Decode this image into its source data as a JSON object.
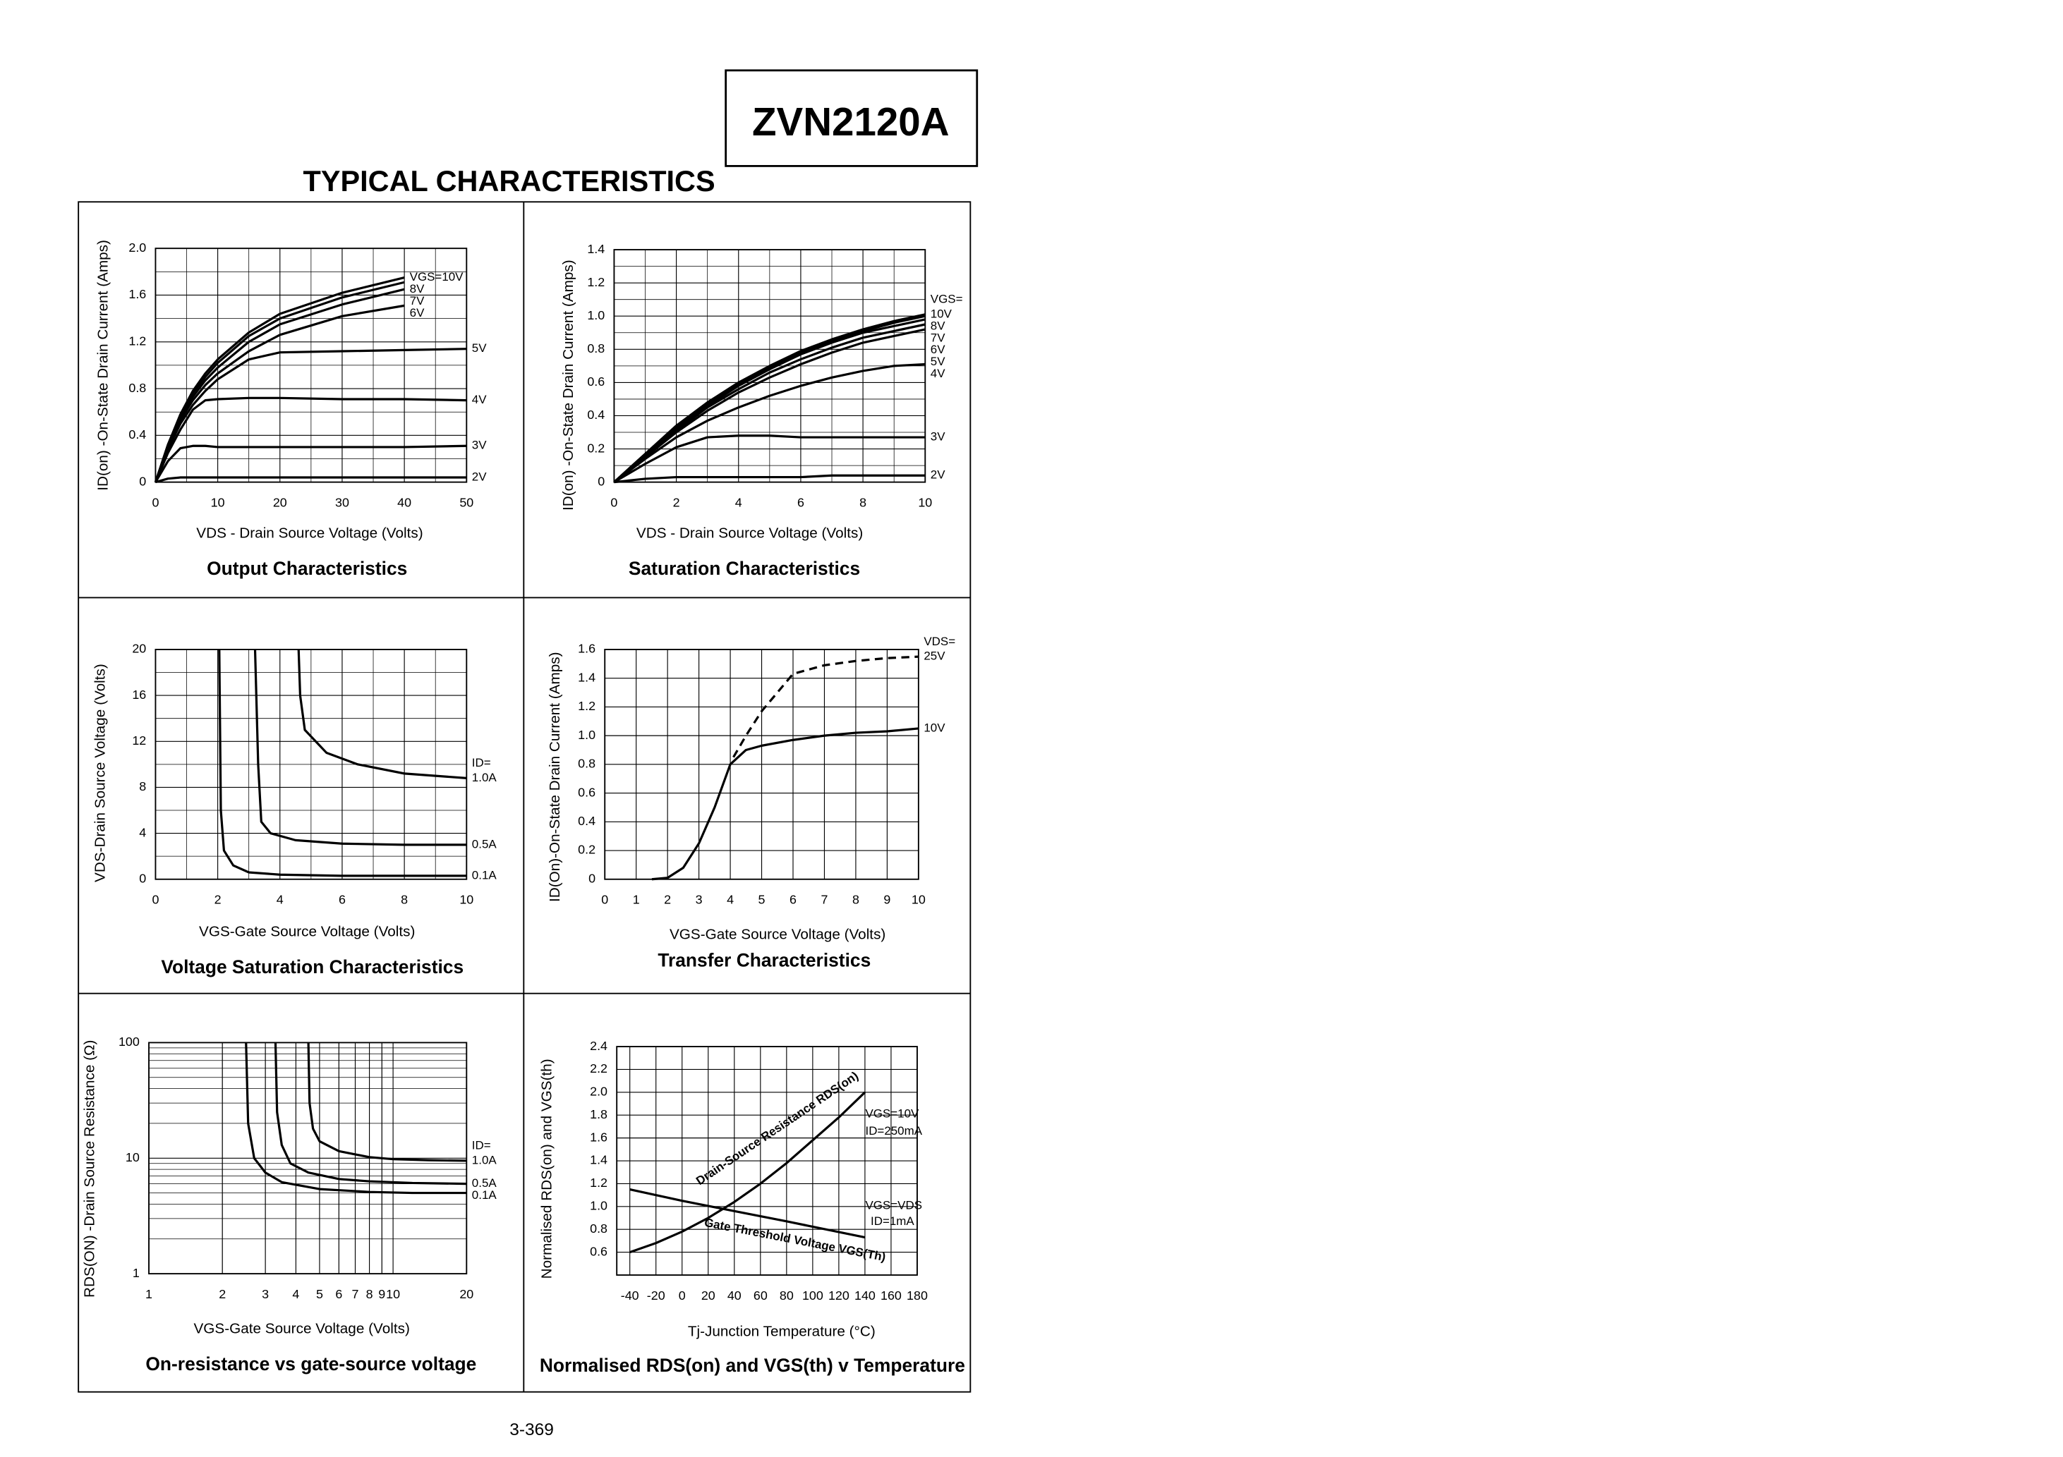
{
  "header": {
    "part_number": "ZVN2120A",
    "section_title": "TYPICAL CHARACTERISTICS"
  },
  "footer": {
    "page_number": "3-369"
  },
  "chart_data": [
    {
      "type": "line",
      "title": "Output Characteristics",
      "x_label": "VDS - Drain Source Voltage (Volts)",
      "y_label": "ID(on) -On-State Drain Current (Amps)",
      "xlim": [
        0,
        50
      ],
      "ylim": [
        0,
        2
      ],
      "xticks": [
        0,
        10,
        20,
        30,
        40,
        50
      ],
      "yticks": [
        0,
        0.4,
        0.8,
        1.2,
        1.6,
        {
          "value": 2,
          "label": "2.0"
        }
      ],
      "grid": true,
      "color": "#000000",
      "x": [
        0,
        2,
        4,
        6,
        8,
        10,
        15,
        20,
        30,
        40,
        50
      ],
      "series": [
        {
          "name": "VGS=10V",
          "values": [
            0,
            0.32,
            0.58,
            0.78,
            0.93,
            1.05,
            1.28,
            1.44,
            1.62,
            1.75,
            null
          ]
        },
        {
          "name": "8V",
          "values": [
            0,
            0.32,
            0.57,
            0.76,
            0.9,
            1.02,
            1.25,
            1.4,
            1.58,
            1.71,
            null
          ]
        },
        {
          "name": "7V",
          "values": [
            0,
            0.31,
            0.55,
            0.73,
            0.87,
            0.98,
            1.2,
            1.35,
            1.52,
            1.65,
            null
          ]
        },
        {
          "name": "6V",
          "values": [
            0,
            0.3,
            0.53,
            0.7,
            0.83,
            0.93,
            1.12,
            1.26,
            1.42,
            1.51,
            null
          ]
        },
        {
          "name": "5V",
          "values": [
            0,
            0.28,
            0.5,
            0.66,
            0.78,
            0.88,
            1.05,
            1.11,
            1.12,
            1.13,
            1.14
          ]
        },
        {
          "name": "4V",
          "values": [
            0,
            0.25,
            0.45,
            0.62,
            0.7,
            0.71,
            0.72,
            0.72,
            0.71,
            0.71,
            0.7
          ]
        },
        {
          "name": "3V",
          "values": [
            0,
            0.18,
            0.29,
            0.31,
            0.31,
            0.3,
            0.3,
            0.3,
            0.3,
            0.3,
            0.31
          ]
        },
        {
          "name": "2V",
          "values": [
            0,
            0.03,
            0.04,
            0.04,
            0.04,
            0.04,
            0.04,
            0.04,
            0.04,
            0.04,
            0.04
          ]
        }
      ]
    },
    {
      "type": "line",
      "title": "Saturation Characteristics",
      "x_label": "VDS - Drain Source Voltage (Volts)",
      "y_label": "ID(on) -On-State Drain Current (Amps)",
      "xlim": [
        0,
        10
      ],
      "ylim": [
        0,
        1.4
      ],
      "xticks": [
        0,
        2,
        4,
        6,
        8,
        10
      ],
      "yticks": [
        0,
        0.2,
        0.4,
        0.6,
        0.8,
        {
          "value": 1,
          "label": "1.0"
        },
        1.2,
        1.4
      ],
      "grid": true,
      "color": "#000000",
      "legend_title": "VGS=",
      "x": [
        0,
        1,
        2,
        3,
        4,
        5,
        6,
        7,
        8,
        9,
        10
      ],
      "series": [
        {
          "name": "10V",
          "values": [
            0,
            0.17,
            0.34,
            0.48,
            0.6,
            0.7,
            0.79,
            0.86,
            0.92,
            0.97,
            1.01
          ]
        },
        {
          "name": "8V",
          "values": [
            0,
            0.17,
            0.33,
            0.47,
            0.59,
            0.69,
            0.78,
            0.85,
            0.91,
            0.96,
            1.0
          ]
        },
        {
          "name": "7V",
          "values": [
            0,
            0.16,
            0.32,
            0.46,
            0.58,
            0.68,
            0.77,
            0.84,
            0.9,
            0.94,
            0.98
          ]
        },
        {
          "name": "6V",
          "values": [
            0,
            0.16,
            0.31,
            0.45,
            0.56,
            0.66,
            0.74,
            0.81,
            0.87,
            0.91,
            0.95
          ]
        },
        {
          "name": "5V",
          "values": [
            0,
            0.15,
            0.3,
            0.43,
            0.54,
            0.63,
            0.71,
            0.78,
            0.84,
            0.88,
            0.92
          ]
        },
        {
          "name": "4V",
          "values": [
            0,
            0.14,
            0.27,
            0.37,
            0.45,
            0.52,
            0.58,
            0.63,
            0.67,
            0.7,
            0.71
          ]
        },
        {
          "name": "3V",
          "values": [
            0,
            0.11,
            0.21,
            0.27,
            0.28,
            0.28,
            0.27,
            0.27,
            0.27,
            0.27,
            0.27
          ]
        },
        {
          "name": "2V",
          "values": [
            0,
            0.02,
            0.03,
            0.03,
            0.03,
            0.03,
            0.03,
            0.04,
            0.04,
            0.04,
            0.04
          ]
        }
      ]
    },
    {
      "type": "line",
      "title": "Voltage Saturation Characteristics",
      "x_label": "VGS-Gate Source Voltage  (Volts)",
      "y_label": "VDS-Drain Source  Voltage (Volts)",
      "xlim": [
        0,
        10
      ],
      "ylim": [
        0,
        20
      ],
      "xticks": [
        0,
        2,
        4,
        6,
        8,
        10
      ],
      "yticks": [
        0,
        4,
        8,
        12,
        16,
        20
      ],
      "grid": true,
      "color": "#000000",
      "legend_title": "ID=",
      "series": [
        {
          "name": "1.0A",
          "x": [
            4.6,
            4.65,
            4.8,
            5.5,
            6.5,
            8,
            10
          ],
          "values": [
            20,
            16,
            13,
            11,
            10,
            9.2,
            8.8
          ]
        },
        {
          "name": "0.5A",
          "x": [
            3.2,
            3.3,
            3.4,
            3.7,
            4.5,
            6,
            8,
            10
          ],
          "values": [
            20,
            10,
            5,
            4,
            3.4,
            3.1,
            3.0,
            3.0
          ]
        },
        {
          "name": "0.1A",
          "x": [
            2.05,
            2.1,
            2.2,
            2.5,
            3,
            4,
            6,
            10
          ],
          "values": [
            20,
            6,
            2.5,
            1.2,
            0.6,
            0.4,
            0.3,
            0.3
          ]
        }
      ]
    },
    {
      "type": "line",
      "title": "Transfer Characteristics",
      "x_label": "VGS-Gate Source Voltage (Volts)",
      "y_label": "ID(On)-On-State Drain Current  (Amps)",
      "xlim": [
        0,
        10
      ],
      "ylim": [
        0,
        1.6
      ],
      "xticks": [
        0,
        1,
        2,
        3,
        4,
        5,
        6,
        7,
        8,
        9,
        10
      ],
      "yticks": [
        0,
        0.2,
        0.4,
        0.6,
        0.8,
        {
          "value": 1,
          "label": "1.0"
        },
        1.2,
        1.4,
        1.6
      ],
      "grid": true,
      "color": "#000000",
      "legend_title": "VDS=",
      "series": [
        {
          "name": "25V",
          "dashed": true,
          "x": [
            4.1,
            4.5,
            5,
            5.5,
            6,
            7,
            8,
            9,
            10
          ],
          "values": [
            0.85,
            1.0,
            1.17,
            1.3,
            1.43,
            1.49,
            1.52,
            1.54,
            1.55
          ]
        },
        {
          "name": "10V",
          "x": [
            1.5,
            2,
            2.5,
            3,
            3.5,
            4,
            4.5,
            5,
            6,
            7,
            8,
            9,
            10
          ],
          "values": [
            0,
            0.01,
            0.08,
            0.25,
            0.5,
            0.8,
            0.9,
            0.93,
            0.97,
            1.0,
            1.02,
            1.03,
            1.05
          ]
        }
      ]
    },
    {
      "type": "line",
      "title": "On-resistance vs gate-source voltage",
      "x_label": "VGS-Gate Source Voltage (Volts)",
      "y_label": "RDS(ON) -Drain Source Resistance (Ω)",
      "xlim": [
        1,
        20
      ],
      "ylim": [
        1,
        100
      ],
      "log_x": true,
      "log_y": true,
      "xticks": [
        1,
        2,
        3,
        4,
        5,
        6,
        7,
        8,
        9,
        10,
        20
      ],
      "yticks": [
        1,
        10,
        100
      ],
      "grid": true,
      "color": "#000000",
      "legend_title": "ID=",
      "series": [
        {
          "name": "1.0A",
          "x": [
            4.5,
            4.55,
            4.7,
            5,
            6,
            8,
            10,
            14,
            20
          ],
          "values": [
            100,
            30,
            18,
            14,
            11.5,
            10.2,
            9.8,
            9.6,
            9.5
          ]
        },
        {
          "name": "0.5A",
          "x": [
            3.3,
            3.35,
            3.5,
            3.8,
            4.5,
            6,
            8,
            12,
            20
          ],
          "values": [
            100,
            25,
            13,
            9,
            7.5,
            6.6,
            6.3,
            6.1,
            6.0
          ]
        },
        {
          "name": "0.1A",
          "x": [
            2.5,
            2.55,
            2.7,
            3,
            3.5,
            5,
            8,
            12,
            20
          ],
          "values": [
            100,
            20,
            10,
            7.5,
            6.2,
            5.4,
            5.1,
            5.0,
            5.0
          ]
        }
      ]
    },
    {
      "type": "line",
      "title": "Normalised RDS(on) and VGS(th) v Temperature",
      "x_label": "Tj-Junction Temperature (°C)",
      "y_label": "Normalised RDS(on) and VGS(th)",
      "xlim": [
        -50,
        180
      ],
      "ylim": [
        0.4,
        2.4
      ],
      "xticks": [
        -40,
        -20,
        0,
        20,
        40,
        60,
        80,
        100,
        120,
        140,
        160,
        180
      ],
      "yticks": [
        0.6,
        0.8,
        {
          "value": 1,
          "label": "1.0"
        },
        1.2,
        1.4,
        1.6,
        1.8,
        {
          "value": 2,
          "label": "2.0"
        },
        2.2,
        2.4
      ],
      "grid": true,
      "color": "#000000",
      "series": [
        {
          "name": "Drain-Source Resistance RDS(on)",
          "x": [
            -40,
            -20,
            0,
            20,
            40,
            60,
            80,
            100,
            120,
            140
          ],
          "values": [
            0.6,
            0.68,
            0.78,
            0.9,
            1.04,
            1.2,
            1.38,
            1.58,
            1.78,
            2.0
          ]
        },
        {
          "name": "Gate Threshold Voltage VGS(Th)",
          "x": [
            -40,
            0,
            40,
            80,
            140
          ],
          "values": [
            1.15,
            1.05,
            0.96,
            0.87,
            0.73
          ]
        }
      ],
      "annotations": [
        "VGS=10V",
        "ID=250mA",
        "VGS=VDS",
        "ID=1mA"
      ]
    }
  ]
}
